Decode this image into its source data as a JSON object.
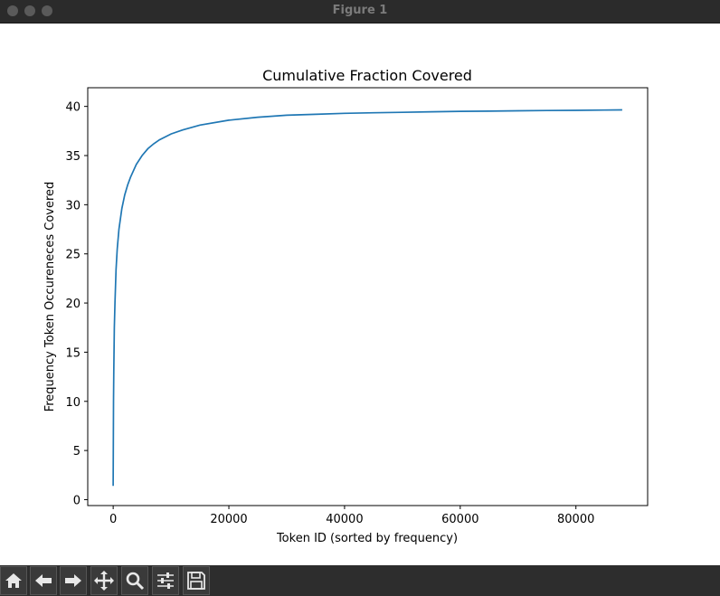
{
  "window": {
    "title": "Figure 1",
    "controls": [
      "close",
      "minimize",
      "zoom"
    ]
  },
  "toolbar": {
    "buttons": [
      {
        "icon": "home-icon",
        "label": "Home"
      },
      {
        "icon": "back-arrow-icon",
        "label": "Back"
      },
      {
        "icon": "forward-arrow-icon",
        "label": "Forward"
      },
      {
        "icon": "pan-move-icon",
        "label": "Pan"
      },
      {
        "icon": "zoom-magnifier-icon",
        "label": "Zoom"
      },
      {
        "icon": "subplots-sliders-icon",
        "label": "Configure subplots"
      },
      {
        "icon": "save-floppy-icon",
        "label": "Save"
      }
    ]
  },
  "chart_data": {
    "type": "line",
    "title": "Cumulative Fraction Covered",
    "xlabel": "Token ID (sorted by frequency)",
    "ylabel": "Frequency Token Occureneces Covered",
    "xlim": [
      -4400,
      92400
    ],
    "ylim": [
      -0.6,
      41.9
    ],
    "xticks": [
      0,
      20000,
      40000,
      60000,
      80000
    ],
    "yticks": [
      0,
      5,
      10,
      15,
      20,
      25,
      30,
      35,
      40
    ],
    "line_color": "#1f77b4",
    "grid": false,
    "series": [
      {
        "x": [
          0,
          50,
          100,
          200,
          300,
          500,
          700,
          1000,
          1500,
          2000,
          2500,
          3000,
          4000,
          5000,
          6000,
          7000,
          8000,
          10000,
          12000,
          15000,
          20000,
          25000,
          30000,
          35000,
          40000,
          45000,
          50000,
          55000,
          60000,
          65000,
          70000,
          75000,
          80000,
          85000,
          88000
        ],
        "y": [
          1.4,
          10.0,
          13.0,
          17.5,
          20.0,
          23.4,
          25.5,
          27.5,
          29.6,
          31.0,
          32.0,
          32.8,
          34.1,
          35.0,
          35.7,
          36.2,
          36.6,
          37.2,
          37.6,
          38.1,
          38.6,
          38.9,
          39.1,
          39.2,
          39.3,
          39.35,
          39.4,
          39.45,
          39.5,
          39.52,
          39.55,
          39.58,
          39.6,
          39.63,
          39.65
        ]
      }
    ]
  }
}
